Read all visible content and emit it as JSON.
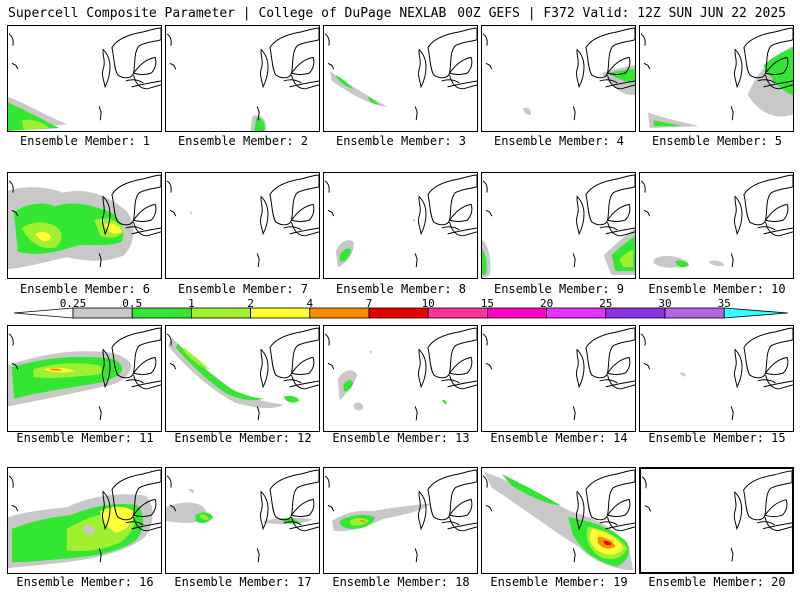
{
  "header": {
    "left_title": "Supercell Composite Parameter | College of DuPage NEXLAB",
    "right_title": "00Z GEFS | F372 Valid: 12Z SUN JUN 22 2025"
  },
  "colorbar": {
    "labels": [
      "0.25",
      "0.5",
      "1",
      "2",
      "4",
      "7",
      "10",
      "15",
      "20",
      "25",
      "30",
      "35"
    ],
    "colors": [
      "#c8c8c8",
      "#32e632",
      "#a0f032",
      "#ffff32",
      "#ff8c00",
      "#e60000",
      "#ff32a0",
      "#ff00c8",
      "#e632ff",
      "#8c32e6",
      "#b464e6",
      "#32ffff"
    ]
  },
  "panels": [
    {
      "label": "Ensemble Member: 1"
    },
    {
      "label": "Ensemble Member: 2"
    },
    {
      "label": "Ensemble Member: 3"
    },
    {
      "label": "Ensemble Member: 4"
    },
    {
      "label": "Ensemble Member: 5"
    },
    {
      "label": "Ensemble Member: 6"
    },
    {
      "label": "Ensemble Member: 7"
    },
    {
      "label": "Ensemble Member: 8"
    },
    {
      "label": "Ensemble Member: 9"
    },
    {
      "label": "Ensemble Member: 10"
    },
    {
      "label": "Ensemble Member: 11"
    },
    {
      "label": "Ensemble Member: 12"
    },
    {
      "label": "Ensemble Member: 13"
    },
    {
      "label": "Ensemble Member: 14"
    },
    {
      "label": "Ensemble Member: 15"
    },
    {
      "label": "Ensemble Member: 16"
    },
    {
      "label": "Ensemble Member: 17"
    },
    {
      "label": "Ensemble Member: 18"
    },
    {
      "label": "Ensemble Member: 19"
    },
    {
      "label": "Ensemble Member: 20"
    }
  ]
}
